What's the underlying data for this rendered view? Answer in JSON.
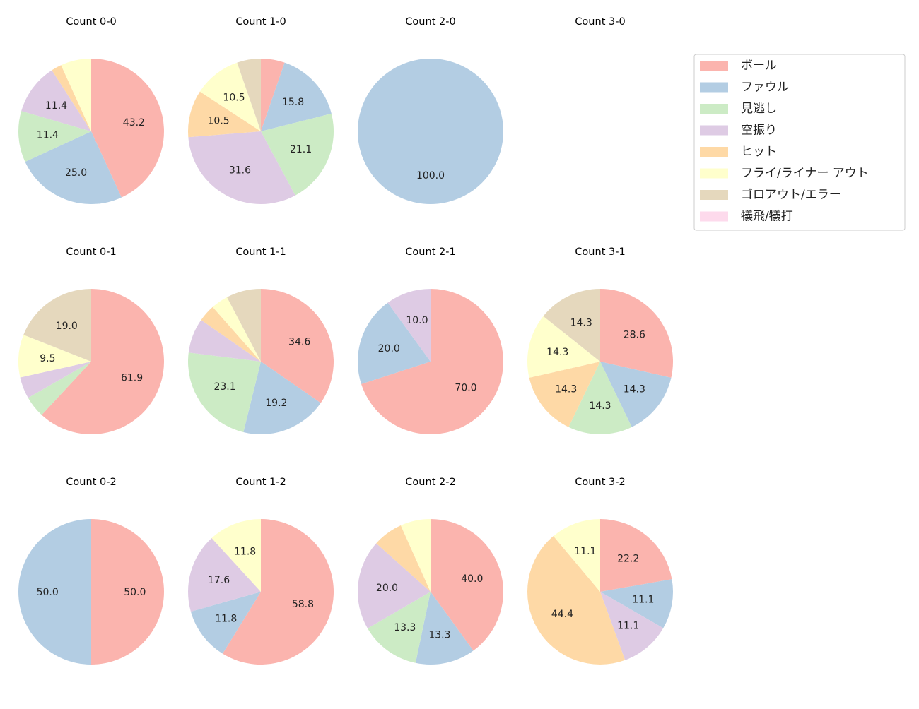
{
  "chart_data": {
    "type": "pie",
    "categories": [
      "ボール",
      "ファウル",
      "見逃し",
      "空振り",
      "ヒット",
      "フライ/ライナー アウト",
      "ゴロアウト/エラー",
      "犠飛/犠打"
    ],
    "colors": [
      "#fbb4ae",
      "#b3cde3",
      "#ccebc5",
      "#decbe4",
      "#fed9a6",
      "#ffffcc",
      "#e5d8bd",
      "#fddaec"
    ],
    "legend_placement": "top-right",
    "start_angle": 90,
    "direction": "clockwise",
    "charts": [
      {
        "title": "Count 0-0",
        "values": [
          43.2,
          25.0,
          11.4,
          11.4,
          2.3,
          6.8,
          0,
          0
        ]
      },
      {
        "title": "Count 1-0",
        "values": [
          5.3,
          15.8,
          21.1,
          31.6,
          10.5,
          10.5,
          5.3,
          0
        ]
      },
      {
        "title": "Count 2-0",
        "values": [
          0,
          100.0,
          0,
          0,
          0,
          0,
          0,
          0
        ]
      },
      {
        "title": "Count 3-0",
        "values": [
          0,
          0,
          0,
          0,
          0,
          0,
          0,
          0
        ]
      },
      {
        "title": "Count 0-1",
        "values": [
          61.9,
          0,
          4.8,
          4.8,
          0,
          9.5,
          19.0,
          0
        ]
      },
      {
        "title": "Count 1-1",
        "values": [
          34.6,
          19.2,
          23.1,
          7.7,
          3.8,
          3.8,
          7.7,
          0
        ]
      },
      {
        "title": "Count 2-1",
        "values": [
          70.0,
          20.0,
          0,
          10.0,
          0,
          0,
          0,
          0
        ]
      },
      {
        "title": "Count 3-1",
        "values": [
          28.6,
          14.3,
          14.3,
          0,
          14.3,
          14.3,
          14.3,
          0
        ]
      },
      {
        "title": "Count 0-2",
        "values": [
          50.0,
          50.0,
          0,
          0,
          0,
          0,
          0,
          0
        ]
      },
      {
        "title": "Count 1-2",
        "values": [
          58.8,
          11.8,
          0,
          17.6,
          0,
          11.8,
          0,
          0
        ]
      },
      {
        "title": "Count 2-2",
        "values": [
          40.0,
          13.3,
          13.3,
          20.0,
          6.7,
          6.7,
          0,
          0
        ]
      },
      {
        "title": "Count 3-2",
        "values": [
          22.2,
          11.1,
          0,
          11.1,
          44.4,
          11.1,
          0,
          0
        ]
      }
    ]
  }
}
